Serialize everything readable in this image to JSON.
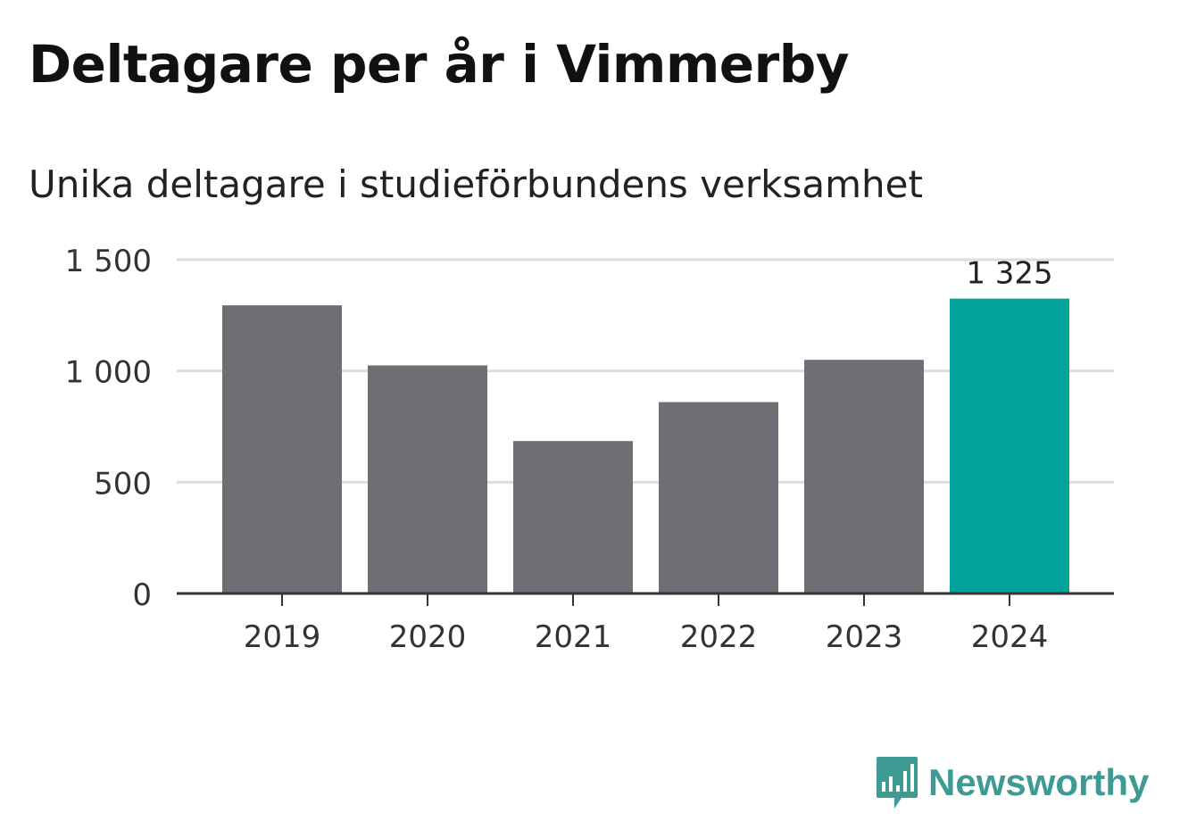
{
  "title": "Deltagare per år i Vimmerby",
  "subtitle": "Unika deltagare i studieförbundens verksamhet",
  "colors": {
    "bar": "#6f6e74",
    "highlight": "#00a399",
    "grid": "#dddddd",
    "axis": "#333333",
    "text": "#333333",
    "brand": "#3d9b93"
  },
  "brand": {
    "name": "Newsworthy",
    "icon": "bar-chart-speech-bubble-icon"
  },
  "chart_data": {
    "type": "bar",
    "categories": [
      "2019",
      "2020",
      "2021",
      "2022",
      "2023",
      "2024"
    ],
    "values": [
      1295,
      1025,
      685,
      860,
      1050,
      1325
    ],
    "ylim": [
      0,
      1500
    ],
    "yticks": [
      0,
      500,
      1000,
      1500
    ],
    "ytick_labels": [
      "0",
      "500",
      "1 000",
      "1 500"
    ],
    "highlight_index": 5,
    "data_labels": [
      {
        "index": 5,
        "text": "1 325"
      }
    ],
    "grid": true,
    "xlabel": "",
    "ylabel": ""
  }
}
